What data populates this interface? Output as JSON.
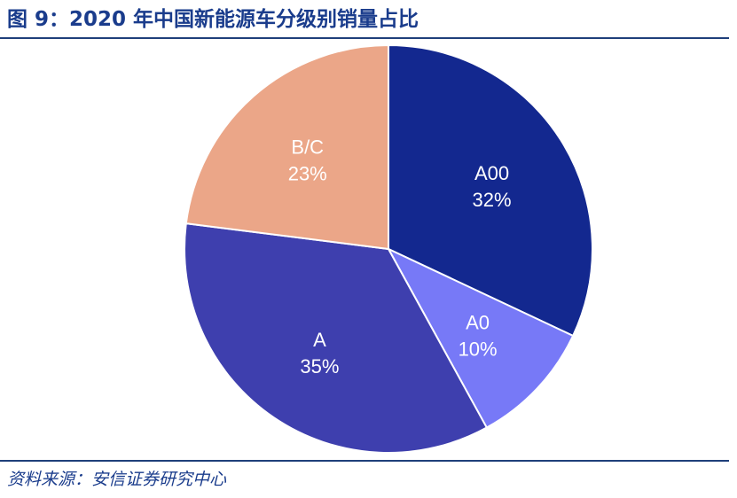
{
  "header": {
    "title": "图 9：2020 年中国新能源车分级别销量占比"
  },
  "footer": {
    "source": "资料来源：安信证券研究中心"
  },
  "chart_data": {
    "type": "pie",
    "categories": [
      "A00",
      "A0",
      "A",
      "B/C"
    ],
    "values": [
      32,
      10,
      35,
      23
    ],
    "value_labels": [
      "32%",
      "10%",
      "35%",
      "23%"
    ],
    "colors": [
      "#13288f",
      "#7779f7",
      "#3e3fae",
      "#eba688"
    ],
    "start": "12 o'clock",
    "direction": "clockwise"
  }
}
